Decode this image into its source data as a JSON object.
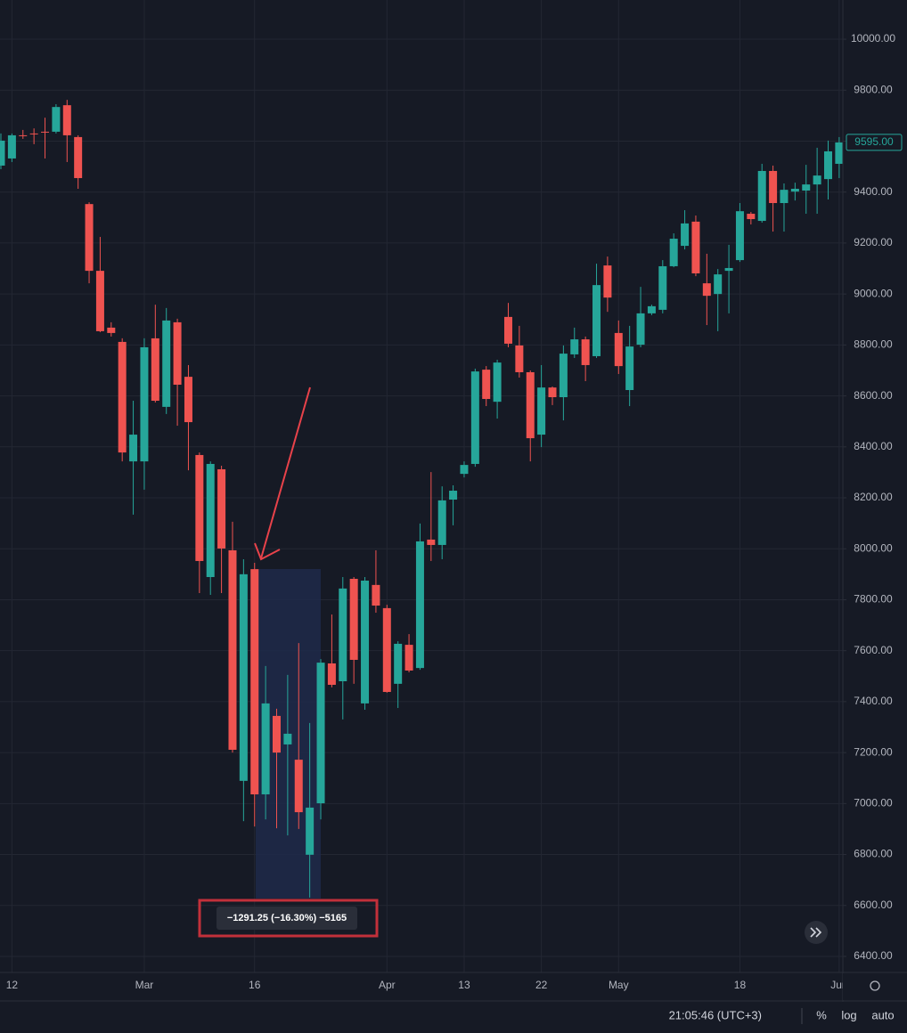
{
  "chart_data": {
    "type": "candlestick",
    "categories": [
      null,
      "12",
      null,
      null,
      null,
      null,
      null,
      null,
      null,
      null,
      null,
      null,
      null,
      "Mar",
      null,
      null,
      null,
      null,
      null,
      null,
      null,
      null,
      null,
      "16",
      null,
      null,
      null,
      null,
      null,
      null,
      null,
      null,
      null,
      null,
      null,
      "Apr",
      null,
      null,
      null,
      null,
      null,
      null,
      "13",
      null,
      null,
      null,
      null,
      null,
      null,
      "22",
      null,
      null,
      null,
      null,
      null,
      null,
      "May",
      null,
      null,
      null,
      null,
      null,
      null,
      null,
      null,
      null,
      null,
      "18",
      null,
      null,
      null,
      null,
      null,
      null,
      null,
      null,
      "Jun"
    ],
    "open": [
      9504,
      9532,
      9623,
      9630,
      9637,
      9637,
      9741,
      9616,
      9353,
      9091,
      8868,
      8812,
      8343,
      8343,
      8826,
      8557,
      8889,
      8675,
      8368,
      7889,
      8312,
      7994,
      7089,
      7920,
      7036,
      7344,
      7232,
      7172,
      6799,
      7001,
      7550,
      7480,
      7882,
      7393,
      7858,
      7767,
      7470,
      7623,
      7532,
      8036,
      8015,
      8193,
      8294,
      8333,
      8703,
      8577,
      8910,
      8798,
      8693,
      8448,
      8633,
      8595,
      8763,
      8822,
      8756,
      9112,
      8847,
      8623,
      8801,
      8924,
      8938,
      9109,
      9189,
      9284,
      9042,
      9000,
      9091,
      9133,
      9315,
      9287,
      9483,
      9357,
      9402,
      9406,
      9430,
      9451,
      9511
    ],
    "high": [
      9630,
      9630,
      9644,
      9650,
      9692,
      9745,
      9762,
      9623,
      9360,
      9224,
      8889,
      8826,
      8581,
      8826,
      8958,
      8945,
      8903,
      8721,
      8378,
      8343,
      8326,
      8106,
      7959,
      7945,
      7540,
      7372,
      7505,
      7630,
      7316,
      7567,
      7742,
      7889,
      7889,
      7889,
      7994,
      7780,
      7637,
      7665,
      8099,
      8301,
      8245,
      8249,
      8343,
      8707,
      8717,
      8742,
      8965,
      8875,
      8700,
      8721,
      8637,
      8798,
      8868,
      8833,
      9119,
      9147,
      8896,
      8875,
      9028,
      8958,
      9133,
      9238,
      9329,
      9308,
      9158,
      9098,
      9193,
      9357,
      9322,
      9511,
      9504,
      9434,
      9437,
      9507,
      9574,
      9602,
      9616
    ],
    "low": [
      9490,
      9518,
      9609,
      9588,
      9532,
      9630,
      9518,
      9413,
      9042,
      8850,
      8833,
      8343,
      8134,
      8232,
      8574,
      8529,
      8483,
      8308,
      7826,
      7819,
      7826,
      7200,
      6931,
      6910,
      6938,
      6903,
      6875,
      6900,
      6631,
      6938,
      7456,
      7330,
      7470,
      7368,
      7749,
      7435,
      7375,
      7515,
      7525,
      7952,
      7959,
      8092,
      8280,
      8322,
      8560,
      8511,
      8791,
      8672,
      8343,
      8399,
      8564,
      8504,
      8749,
      8658,
      8749,
      8930,
      8686,
      8560,
      8791,
      8917,
      8924,
      9105,
      9175,
      9070,
      8878,
      8854,
      8924,
      9126,
      9273,
      9280,
      9245,
      9245,
      9367,
      9315,
      9315,
      9371,
      9455
    ],
    "close": [
      9602,
      9623,
      9620,
      9628,
      9634,
      9734,
      9623,
      9455,
      9091,
      8854,
      8847,
      8378,
      8448,
      8791,
      8581,
      8896,
      8644,
      8497,
      7952,
      8333,
      8001,
      7211,
      7900,
      7036,
      7393,
      7200,
      7274,
      6966,
      6984,
      7553,
      7466,
      7844,
      7564,
      7875,
      7777,
      7438,
      7627,
      7522,
      8029,
      8015,
      8190,
      8228,
      8329,
      8696,
      8588,
      8731,
      8805,
      8693,
      8434,
      8633,
      8595,
      8766,
      8822,
      8721,
      9035,
      8986,
      8717,
      8794,
      8924,
      8952,
      9109,
      9217,
      9277,
      9081,
      8993,
      9077,
      9102,
      9325,
      9294,
      9483,
      9357,
      9409,
      9413,
      9430,
      9465,
      9560,
      9595
    ],
    "up_color": "#26a69a",
    "down_color": "#ef5350",
    "ylim": [
      6344,
      10154
    ],
    "yticks": [
      {
        "value": 6400,
        "label": "6400.00"
      },
      {
        "value": 6600,
        "label": "6600.00"
      },
      {
        "value": 6800,
        "label": "6800.00"
      },
      {
        "value": 7000,
        "label": "7000.00"
      },
      {
        "value": 7200,
        "label": "7200.00"
      },
      {
        "value": 7400,
        "label": "7400.00"
      },
      {
        "value": 7600,
        "label": "7600.00"
      },
      {
        "value": 7800,
        "label": "7800.00"
      },
      {
        "value": 8000,
        "label": "8000.00"
      },
      {
        "value": 8200,
        "label": "8200.00"
      },
      {
        "value": 8400,
        "label": "8400.00"
      },
      {
        "value": 8600,
        "label": "8600.00"
      },
      {
        "value": 8800,
        "label": "8800.00"
      },
      {
        "value": 9000,
        "label": "9000.00"
      },
      {
        "value": 9200,
        "label": "9200.00"
      },
      {
        "value": 9400,
        "label": "9400.00"
      },
      {
        "value": 9600,
        "label": "9600.00"
      },
      {
        "value": 9800,
        "label": "9800.00"
      },
      {
        "value": 10000,
        "label": "10000.00"
      }
    ],
    "grid": true,
    "log_scale": false,
    "last_price_label": "9595.00",
    "measure_label": "−1291.25 (−16.30%) −5165"
  },
  "status_bar": {
    "time": "21:05:46 (UTC+3)",
    "percent": "%",
    "log": "log",
    "auto": "auto"
  }
}
